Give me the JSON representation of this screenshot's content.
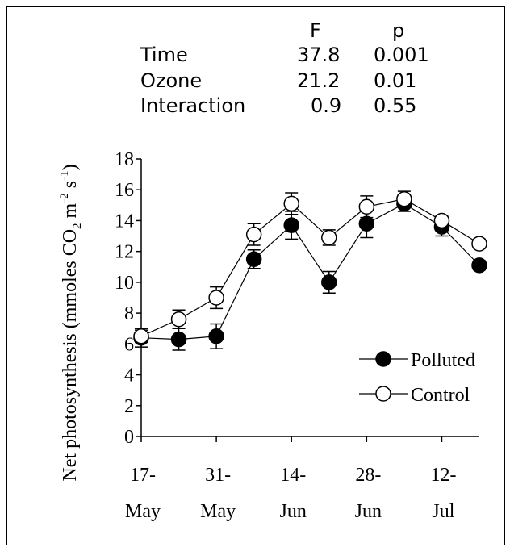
{
  "stats_table": {
    "headers": [
      "",
      "F",
      "p"
    ],
    "rows": [
      {
        "effect": "Time",
        "F": "37.8",
        "p": "0.001"
      },
      {
        "effect": "Ozone",
        "F": "21.2",
        "p": "0.01"
      },
      {
        "effect": "Interaction",
        "F": "0.9",
        "p": "0.55"
      }
    ]
  },
  "chart_data": {
    "type": "line",
    "ylabel": "Net photosynthesis (mmoles CO2 m-2 s-1)",
    "ylim": [
      0,
      18
    ],
    "yticks": [
      "0",
      "2",
      "4",
      "6",
      "8",
      "10",
      "12",
      "14",
      "16",
      "18"
    ],
    "xlim": [
      0,
      9
    ],
    "xticks": [
      {
        "x": 0,
        "line1": "17-",
        "line2": "May"
      },
      {
        "x": 2,
        "line1": "31-",
        "line2": "May"
      },
      {
        "x": 4,
        "line1": "14-",
        "line2": "Jun"
      },
      {
        "x": 6,
        "line1": "28-",
        "line2": "Jun"
      },
      {
        "x": 8,
        "line1": "12-",
        "line2": "Jul"
      }
    ],
    "x": [
      0,
      1,
      2,
      3,
      4,
      5,
      6,
      7,
      8,
      9
    ],
    "series": [
      {
        "name": "Polluted",
        "marker": "filled-circle",
        "values": [
          6.4,
          6.3,
          6.5,
          11.5,
          13.7,
          10.0,
          13.8,
          15.1,
          13.6,
          11.1
        ],
        "errors": [
          0.6,
          0.7,
          0.8,
          0.6,
          0.9,
          0.7,
          0.9,
          0.5,
          0.6,
          0.3
        ]
      },
      {
        "name": "Control",
        "marker": "open-circle",
        "values": [
          6.5,
          7.6,
          9.0,
          13.1,
          15.1,
          12.9,
          14.9,
          15.4,
          14.0,
          12.5
        ],
        "errors": [
          0.4,
          0.6,
          0.7,
          0.7,
          0.7,
          0.5,
          0.7,
          0.5,
          0.3,
          0.3
        ]
      }
    ],
    "legend_placement": "bottom-right",
    "grid": false,
    "colors": {
      "line": "#000000",
      "filled_marker": "#000000",
      "open_marker": "#ffffff"
    }
  }
}
